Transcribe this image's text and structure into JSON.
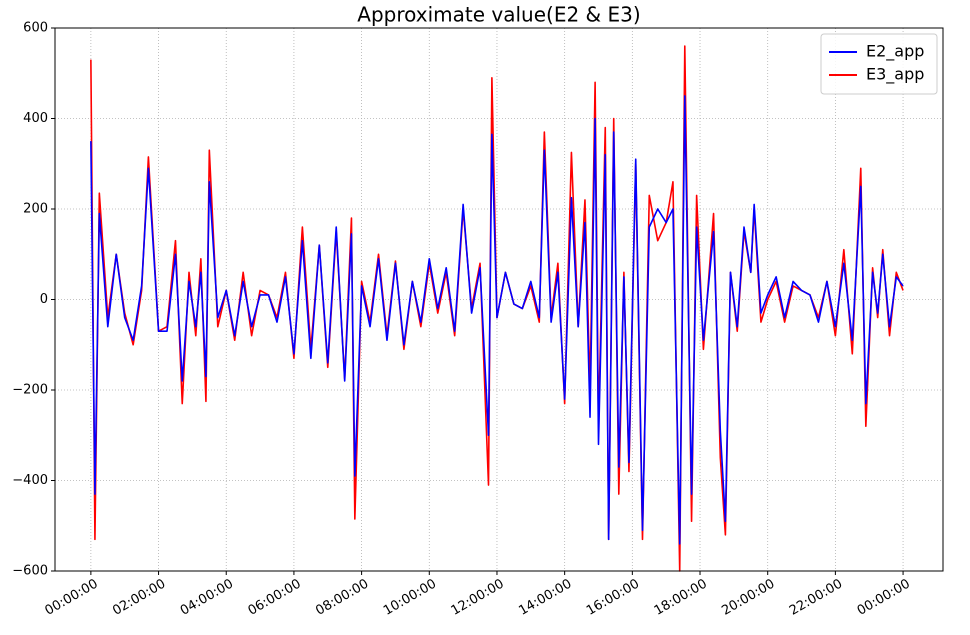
{
  "chart_data": {
    "type": "line",
    "title": "Approximate value(E2 & E3)",
    "x": [
      0,
      0.12,
      0.25,
      0.5,
      0.75,
      1.0,
      1.25,
      1.5,
      1.7,
      2.0,
      2.25,
      2.5,
      2.7,
      2.9,
      3.1,
      3.25,
      3.4,
      3.5,
      3.75,
      4.0,
      4.25,
      4.5,
      4.75,
      5.0,
      5.25,
      5.5,
      5.75,
      6.0,
      6.25,
      6.5,
      6.75,
      7.0,
      7.25,
      7.5,
      7.7,
      7.8,
      8.0,
      8.25,
      8.5,
      8.75,
      9.0,
      9.25,
      9.5,
      9.75,
      10.0,
      10.25,
      10.5,
      10.75,
      11.0,
      11.25,
      11.5,
      11.75,
      11.85,
      12.0,
      12.25,
      12.5,
      12.75,
      13.0,
      13.25,
      13.4,
      13.6,
      13.8,
      14.0,
      14.2,
      14.4,
      14.6,
      14.75,
      14.9,
      15.0,
      15.2,
      15.3,
      15.45,
      15.6,
      15.75,
      15.9,
      16.1,
      16.3,
      16.5,
      16.75,
      17.0,
      17.2,
      17.4,
      17.55,
      17.75,
      17.9,
      18.1,
      18.4,
      18.6,
      18.75,
      18.9,
      19.1,
      19.3,
      19.5,
      19.6,
      19.8,
      20.0,
      20.25,
      20.5,
      20.75,
      21.0,
      21.25,
      21.5,
      21.75,
      22.0,
      22.25,
      22.5,
      22.75,
      22.9,
      23.1,
      23.25,
      23.4,
      23.6,
      23.8,
      24.0
    ],
    "series": [
      {
        "name": "E2_app",
        "color": "#0000ff",
        "values": [
          350,
          -430,
          190,
          -60,
          100,
          -40,
          -90,
          30,
          290,
          -70,
          -70,
          100,
          -180,
          40,
          -60,
          60,
          -170,
          260,
          -40,
          20,
          -80,
          40,
          -60,
          10,
          10,
          -50,
          50,
          -120,
          130,
          -130,
          120,
          -140,
          160,
          -180,
          145,
          -390,
          30,
          -60,
          90,
          -90,
          80,
          -100,
          40,
          -50,
          90,
          -20,
          70,
          -70,
          210,
          -30,
          70,
          -300,
          365,
          -40,
          60,
          -10,
          -20,
          40,
          -40,
          330,
          -50,
          60,
          -220,
          225,
          -60,
          170,
          -260,
          400,
          -320,
          320,
          -530,
          370,
          -370,
          50,
          -360,
          310,
          -510,
          160,
          200,
          170,
          200,
          -540,
          450,
          -430,
          160,
          -90,
          150,
          -290,
          -490,
          60,
          -60,
          160,
          60,
          210,
          -30,
          10,
          50,
          -40,
          40,
          20,
          10,
          -50,
          40,
          -60,
          80,
          -90,
          250,
          -230,
          60,
          -30,
          100,
          -60,
          50,
          30
        ]
      },
      {
        "name": "E3_app",
        "color": "#ff0000",
        "values": [
          530,
          -530,
          235,
          -40,
          100,
          -30,
          -100,
          20,
          315,
          -70,
          -60,
          130,
          -230,
          60,
          -80,
          90,
          -225,
          330,
          -60,
          20,
          -90,
          60,
          -80,
          20,
          10,
          -40,
          60,
          -130,
          160,
          -110,
          120,
          -150,
          150,
          -175,
          180,
          -485,
          40,
          -50,
          100,
          -80,
          85,
          -110,
          40,
          -60,
          80,
          -30,
          60,
          -80,
          200,
          -20,
          80,
          -410,
          490,
          -40,
          60,
          -10,
          -20,
          30,
          -50,
          370,
          -40,
          80,
          -230,
          325,
          -60,
          220,
          -200,
          480,
          -280,
          380,
          -530,
          400,
          -430,
          60,
          -380,
          300,
          -530,
          230,
          130,
          170,
          260,
          -600,
          560,
          -490,
          230,
          -110,
          190,
          -350,
          -520,
          60,
          -70,
          150,
          60,
          200,
          -50,
          0,
          40,
          -50,
          30,
          20,
          10,
          -40,
          40,
          -80,
          110,
          -120,
          290,
          -280,
          70,
          -40,
          110,
          -80,
          60,
          20
        ]
      }
    ],
    "xlim": [
      -1.06,
      25.18
    ],
    "xticks": [
      {
        "value": 0,
        "label": "00:00:00"
      },
      {
        "value": 2,
        "label": "02:00:00"
      },
      {
        "value": 4,
        "label": "04:00:00"
      },
      {
        "value": 6,
        "label": "06:00:00"
      },
      {
        "value": 8,
        "label": "08:00:00"
      },
      {
        "value": 10,
        "label": "10:00:00"
      },
      {
        "value": 12,
        "label": "12:00:00"
      },
      {
        "value": 14,
        "label": "14:00:00"
      },
      {
        "value": 16,
        "label": "16:00:00"
      },
      {
        "value": 18,
        "label": "18:00:00"
      },
      {
        "value": 20,
        "label": "20:00:00"
      },
      {
        "value": 22,
        "label": "22:00:00"
      },
      {
        "value": 24,
        "label": "00:00:00"
      }
    ],
    "ylim": [
      -600,
      600
    ],
    "yticks": [
      {
        "value": -600,
        "label": "−600"
      },
      {
        "value": -400,
        "label": "−400"
      },
      {
        "value": -200,
        "label": "−200"
      },
      0,
      200,
      400,
      600
    ],
    "grid": true,
    "legend": "upper right"
  }
}
